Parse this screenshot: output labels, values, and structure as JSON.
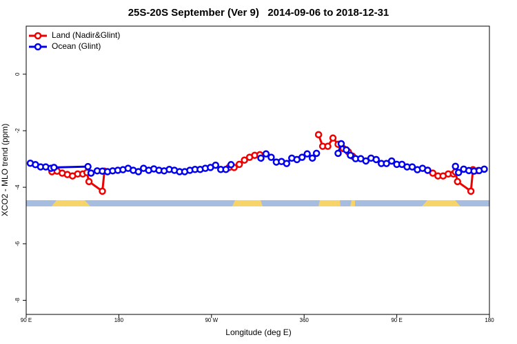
{
  "chart_data": {
    "type": "line",
    "title": "25S-20S September (Ver 9)   2014-09-06 to 2018-12-31",
    "xlabel": "Longitude (deg E)",
    "ylabel": "XCO2 - MLO trend (ppm)",
    "xlim": [
      90,
      540
    ],
    "ylim": [
      -8.5,
      1.7
    ],
    "xticks": [
      {
        "value": 90,
        "label": "90 E"
      },
      180,
      {
        "value": 270,
        "label": "90 W"
      },
      360,
      {
        "value": 450,
        "label": "90 E"
      },
      {
        "value": 540,
        "label": "180"
      }
    ],
    "yticks": [
      0,
      -2,
      -4,
      -6,
      -8
    ],
    "legend": "top-left",
    "series": [
      {
        "name": "Land (Nadir&Glint)",
        "color": "#ee0000",
        "x": [
          115,
          120,
          125,
          130,
          135,
          140,
          145,
          149,
          151,
          164,
          166,
          null,
          287,
          292,
          297,
          302,
          307,
          312,
          317,
          null,
          374,
          378,
          383,
          388,
          393,
          398,
          403,
          407,
          null,
          480,
          485,
          490,
          495,
          500,
          505,
          507,
          509,
          522,
          524,
          529
        ],
        "values": [
          -3.45,
          -3.43,
          -3.5,
          -3.55,
          -3.6,
          -3.53,
          -3.53,
          -3.48,
          -3.8,
          -4.14,
          -3.43,
          null,
          -3.3,
          -3.3,
          -3.19,
          -3.04,
          -2.94,
          -2.87,
          -2.85,
          null,
          -2.14,
          -2.55,
          -2.55,
          -2.26,
          -2.48,
          -2.63,
          -2.75,
          -2.9,
          null,
          -3.4,
          -3.5,
          -3.6,
          -3.6,
          -3.53,
          -3.53,
          -3.46,
          -3.8,
          -4.14,
          -3.38,
          -3.41
        ]
      },
      {
        "name": "Ocean (Glint)",
        "color": "#0000ee",
        "x": [
          94,
          99,
          104,
          109,
          114,
          117,
          150,
          153,
          159,
          164,
          169,
          174,
          179,
          184,
          189,
          194,
          199,
          204,
          209,
          214,
          219,
          224,
          229,
          234,
          239,
          244,
          249,
          254,
          259,
          264,
          269,
          274,
          279,
          284,
          289,
          null,
          318,
          323,
          328,
          333,
          338,
          343,
          348,
          353,
          358,
          363,
          368,
          372,
          null,
          393,
          396,
          401,
          405,
          410,
          415,
          420,
          425,
          430,
          435,
          440,
          445,
          450,
          455,
          460,
          465,
          470,
          475,
          480,
          null,
          507,
          510,
          515,
          520,
          525,
          530,
          535
        ],
        "values": [
          -3.15,
          -3.2,
          -3.28,
          -3.28,
          -3.33,
          -3.3,
          -3.27,
          -3.5,
          -3.42,
          -3.43,
          -3.45,
          -3.42,
          -3.4,
          -3.38,
          -3.33,
          -3.4,
          -3.45,
          -3.33,
          -3.4,
          -3.35,
          -3.4,
          -3.42,
          -3.37,
          -3.4,
          -3.45,
          -3.45,
          -3.4,
          -3.37,
          -3.37,
          -3.33,
          -3.3,
          -3.22,
          -3.37,
          -3.37,
          -3.2,
          null,
          -2.97,
          -2.82,
          -2.94,
          -3.11,
          -3.09,
          -3.16,
          -2.97,
          -3.02,
          -2.94,
          -2.82,
          -2.97,
          -2.8,
          null,
          -2.8,
          -2.46,
          -2.68,
          -2.87,
          -2.99,
          -2.99,
          -3.07,
          -2.97,
          -3.02,
          -3.16,
          -3.16,
          -3.07,
          -3.19,
          -3.19,
          -3.28,
          -3.28,
          -3.38,
          -3.33,
          -3.4,
          null,
          -3.26,
          -3.48,
          -3.36,
          -3.41,
          -3.43,
          -3.41,
          -3.36
        ]
      }
    ]
  }
}
